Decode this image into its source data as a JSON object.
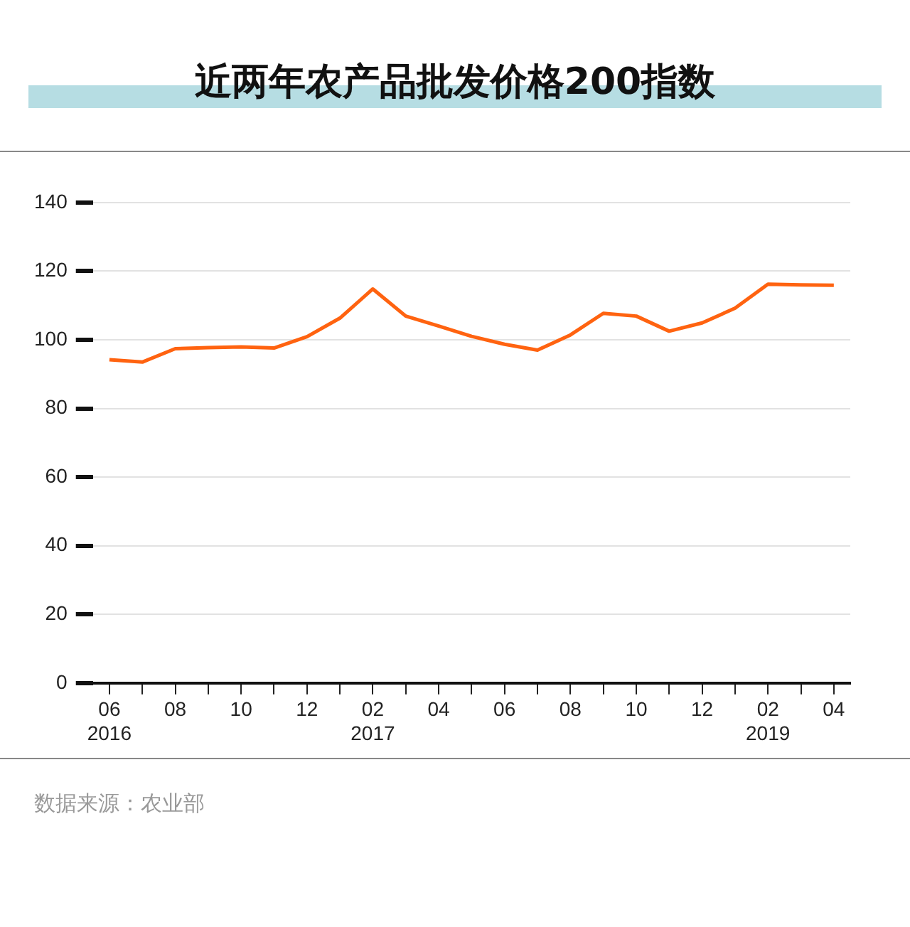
{
  "chart_data": {
    "type": "line",
    "title": "近两年农产品批发价格200指数",
    "categories": [
      "06\n2016",
      null,
      "08",
      null,
      "10",
      null,
      "12",
      null,
      "02\n2017",
      null,
      "04",
      null,
      "06",
      null,
      "08",
      null,
      "10",
      null,
      "12",
      null,
      "02\n2019",
      null,
      "04"
    ],
    "series": [
      {
        "color": "#ff6310",
        "values": [
          94.2,
          93.5,
          97.4,
          97.7,
          97.9,
          97.6,
          100.9,
          106.3,
          114.8,
          106.9,
          104,
          101,
          98.7,
          97,
          101.4,
          107.7,
          106.9,
          102.5,
          104.9,
          109.2,
          116.2,
          116,
          115.9
        ]
      }
    ],
    "ylim": [
      0,
      140
    ],
    "yticks": [
      0,
      20,
      40,
      60,
      80,
      100,
      120,
      140
    ],
    "grid": "y",
    "legend": false,
    "marker": "none",
    "line_style": "solid",
    "annotations": [
      "数据来源：农业部"
    ]
  }
}
